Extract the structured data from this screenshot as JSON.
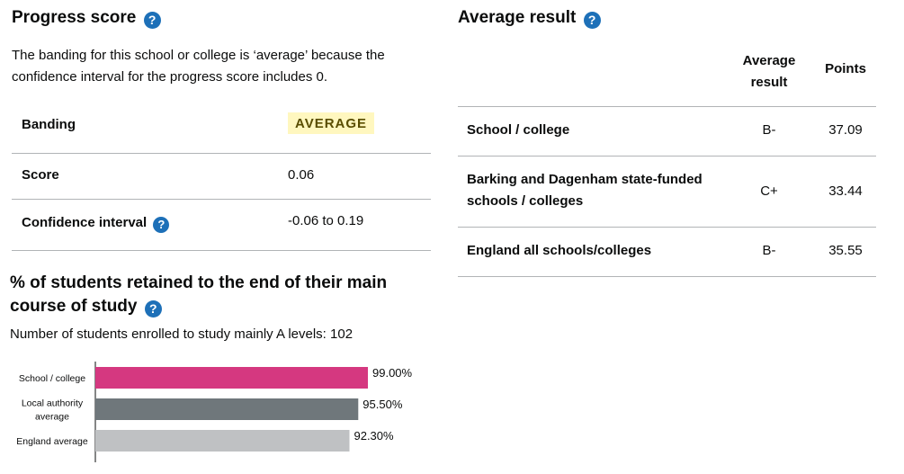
{
  "progress": {
    "title": "Progress score",
    "help_icon": "?",
    "description": "The banding for this school or college is ‘average’ because the confidence interval for the progress score includes 0.",
    "rows": [
      {
        "label": "Banding",
        "value": "AVERAGE"
      },
      {
        "label": "Score",
        "value": "0.06"
      },
      {
        "label": "Confidence interval",
        "value": "-0.06 to 0.19"
      }
    ]
  },
  "retention": {
    "title": "% of students retained to the end of their main course of study",
    "subtitle": "Number of students enrolled to study mainly A levels: 102"
  },
  "chart_data": {
    "type": "bar",
    "orientation": "horizontal",
    "categories": [
      "School / college",
      "Local authority average",
      "England average"
    ],
    "values": [
      99.0,
      95.5,
      92.3
    ],
    "value_labels": [
      "99.00%",
      "95.50%",
      "92.30%"
    ],
    "colors": [
      "#d53880",
      "#6f777b",
      "#bfc1c3"
    ],
    "xlim": [
      0,
      100
    ]
  },
  "average_result": {
    "title": "Average result",
    "columns": [
      "",
      "Average result",
      "Points"
    ],
    "rows": [
      {
        "name": "School / college",
        "result": "B-",
        "points": "37.09"
      },
      {
        "name": "Barking and Dagenham state-funded schools / colleges",
        "result": "C+",
        "points": "33.44"
      },
      {
        "name": "England all schools/colleges",
        "result": "B-",
        "points": "35.55"
      }
    ]
  },
  "colors": {
    "text": "#0b0c0c",
    "link_blue": "#1d70b8",
    "tag_bg": "#fff7bf",
    "tag_text": "#594d00",
    "rule": "#b1b4b6"
  }
}
